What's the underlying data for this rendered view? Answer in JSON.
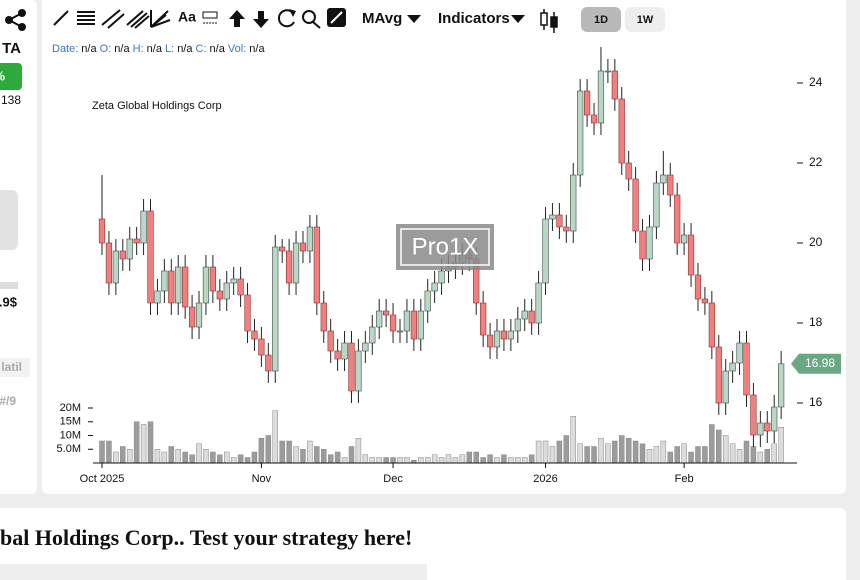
{
  "left_panel": {
    "ticker": "TA",
    "change": "%",
    "price": "138",
    "value": ".9$",
    "tab": "latil",
    "rank": "#/9"
  },
  "toolbar": {
    "text_tool": "Aa",
    "moving_average": "MAvg",
    "indicators": "Indicators",
    "intervals": [
      "1D",
      "1W"
    ]
  },
  "info": [
    {
      "label": "Date:",
      "value": "n/a"
    },
    {
      "label": "O:",
      "value": "n/a"
    },
    {
      "label": "H:",
      "value": "n/a"
    },
    {
      "label": "L:",
      "value": "n/a"
    },
    {
      "label": "C:",
      "value": "n/a"
    },
    {
      "label": "Vol:",
      "value": "n/a"
    }
  ],
  "chart_data": {
    "type": "candlestick",
    "title": "Zeta Global Holdings Corp",
    "watermark": "Pro1X",
    "xticks": [
      {
        "value": 0,
        "label": "Oct 2025"
      },
      {
        "value": 23,
        "label": "Nov"
      },
      {
        "value": 42,
        "label": "Dec"
      },
      {
        "value": 64,
        "label": "2026"
      },
      {
        "value": 84,
        "label": "Feb"
      }
    ],
    "open": [
      20.6,
      20.0,
      19.0,
      19.8,
      19.6,
      20.1,
      20.0,
      20.8,
      18.5,
      18.8,
      19.3,
      18.5,
      19.4,
      18.4,
      17.9,
      18.5,
      19.4,
      18.8,
      18.6,
      19.0,
      19.1,
      18.7,
      17.8,
      17.6,
      17.2,
      16.8,
      19.9,
      19.8,
      19.0,
      20.0,
      19.8,
      20.4,
      18.5,
      17.8,
      17.3,
      17.1,
      17.5,
      16.3,
      17.3,
      17.5,
      17.9,
      18.3,
      18.2,
      17.8,
      17.8,
      18.3,
      17.6,
      18.3,
      18.8,
      19.0,
      19.3,
      19.4,
      19.5,
      19.7,
      19.6,
      18.5,
      17.7,
      17.4,
      17.8,
      17.6,
      17.8,
      18.1,
      18.3,
      18.0,
      19.0,
      20.6,
      20.7,
      20.4,
      20.3,
      21.7,
      23.8,
      23.2,
      23.0,
      24.3,
      24.3,
      23.6,
      22.0,
      21.6,
      20.3,
      19.6,
      20.4,
      21.5,
      21.7,
      21.2,
      20.0,
      20.2,
      19.2,
      18.6,
      18.5,
      17.4,
      16.0,
      16.8,
      17.0,
      17.5,
      16.2,
      15.2,
      15.5,
      15.3,
      15.9
    ],
    "high": [
      21.7,
      20.3,
      20.1,
      20.1,
      20.4,
      20.4,
      21.1,
      21.1,
      19.1,
      19.6,
      19.6,
      19.7,
      19.7,
      18.7,
      18.8,
      19.7,
      19.7,
      19.1,
      19.3,
      19.4,
      19.4,
      19.0,
      18.1,
      17.9,
      17.5,
      20.2,
      20.1,
      20.1,
      20.3,
      20.3,
      20.7,
      20.7,
      18.8,
      18.1,
      17.6,
      17.8,
      17.8,
      17.6,
      17.8,
      18.2,
      18.6,
      18.6,
      18.5,
      18.1,
      18.6,
      18.6,
      18.6,
      19.1,
      19.3,
      19.6,
      19.7,
      19.8,
      20.0,
      20.0,
      19.9,
      18.8,
      18.0,
      18.1,
      18.1,
      18.1,
      18.4,
      18.6,
      18.6,
      19.3,
      20.9,
      21.0,
      21.0,
      20.7,
      22.0,
      24.1,
      24.1,
      23.5,
      24.9,
      24.6,
      24.6,
      23.9,
      22.3,
      21.9,
      20.6,
      20.7,
      21.8,
      22.3,
      22.0,
      21.5,
      20.5,
      20.5,
      19.5,
      18.9,
      18.8,
      17.7,
      17.1,
      17.3,
      17.8,
      17.8,
      16.5,
      15.8,
      15.8,
      16.2,
      17.3
    ],
    "low": [
      19.7,
      18.7,
      18.7,
      19.3,
      19.3,
      19.7,
      19.7,
      18.2,
      18.2,
      18.5,
      18.2,
      18.2,
      18.1,
      17.6,
      17.6,
      18.2,
      18.5,
      18.3,
      18.3,
      18.7,
      18.4,
      17.5,
      17.3,
      16.9,
      16.5,
      16.5,
      19.5,
      18.7,
      18.7,
      19.5,
      19.5,
      18.2,
      17.5,
      17.0,
      16.8,
      16.8,
      16.0,
      16.0,
      17.0,
      17.2,
      17.6,
      17.9,
      17.5,
      17.5,
      17.5,
      17.3,
      17.3,
      18.0,
      18.5,
      18.7,
      19.0,
      19.1,
      19.2,
      19.3,
      18.2,
      17.4,
      17.1,
      17.1,
      17.3,
      17.3,
      17.5,
      17.8,
      17.7,
      17.7,
      18.7,
      20.3,
      20.1,
      20.0,
      20.0,
      21.4,
      22.9,
      22.7,
      22.7,
      24.0,
      23.3,
      21.7,
      21.3,
      20.0,
      19.3,
      19.3,
      20.1,
      21.2,
      20.9,
      19.7,
      19.7,
      18.9,
      18.3,
      18.2,
      17.1,
      15.7,
      15.7,
      16.5,
      16.7,
      15.9,
      14.9,
      14.9,
      15.0,
      15.0,
      15.6
    ],
    "close": [
      20.0,
      19.0,
      19.8,
      19.6,
      20.1,
      20.0,
      20.8,
      18.5,
      18.8,
      19.3,
      18.5,
      19.4,
      18.4,
      17.9,
      18.5,
      19.4,
      18.8,
      18.6,
      19.0,
      19.1,
      18.7,
      17.8,
      17.6,
      17.2,
      16.8,
      19.9,
      19.8,
      19.0,
      20.0,
      19.8,
      20.4,
      18.5,
      17.8,
      17.3,
      17.1,
      17.5,
      16.3,
      17.3,
      17.5,
      17.9,
      18.3,
      18.2,
      17.8,
      17.8,
      18.3,
      17.6,
      18.3,
      18.8,
      19.0,
      19.3,
      19.4,
      19.5,
      19.7,
      19.6,
      18.5,
      17.7,
      17.4,
      17.8,
      17.6,
      17.8,
      18.1,
      18.3,
      18.0,
      19.0,
      20.6,
      20.7,
      20.4,
      20.3,
      21.7,
      23.8,
      23.2,
      23.0,
      24.3,
      24.3,
      23.6,
      22.0,
      21.6,
      20.3,
      19.6,
      20.4,
      21.5,
      21.7,
      21.2,
      20.0,
      20.2,
      19.2,
      18.6,
      18.5,
      17.4,
      16.0,
      16.8,
      17.0,
      17.5,
      16.2,
      15.2,
      15.5,
      15.3,
      15.9,
      16.98
    ],
    "volume": [
      8000000,
      8000000,
      4000000,
      6000000,
      5000000,
      15000000,
      14000000,
      15000000,
      5000000,
      4000000,
      6000000,
      5000000,
      4000000,
      3000000,
      7000000,
      5000000,
      4000000,
      3000000,
      4000000,
      2000000,
      3000000,
      2000000,
      4000000,
      9000000,
      10000000,
      19000000,
      8000000,
      8000000,
      6000000,
      5000000,
      8000000,
      6000000,
      5000000,
      3000000,
      4000000,
      2000000,
      6000000,
      9000000,
      3000000,
      2000000,
      2000000,
      2000000,
      2000000,
      2000000,
      2000000,
      1000000,
      2000000,
      2000000,
      3000000,
      2000000,
      3000000,
      2000000,
      3000000,
      4000000,
      4000000,
      2000000,
      3000000,
      2000000,
      3000000,
      2000000,
      2000000,
      2000000,
      3000000,
      8000000,
      8000000,
      6000000,
      8000000,
      10000000,
      17000000,
      7000000,
      6000000,
      6000000,
      9000000,
      7000000,
      8000000,
      10000000,
      9000000,
      8000000,
      7000000,
      5000000,
      6000000,
      8000000,
      4000000,
      6000000,
      7000000,
      4000000,
      6000000,
      6000000,
      14000000,
      12000000,
      10000000,
      7000000,
      5000000,
      8000000,
      6000000,
      4000000,
      5000000,
      7000000,
      13000000
    ],
    "ylim": [
      14.5,
      25
    ],
    "yticks": [
      16,
      18,
      20,
      22,
      24
    ],
    "y2lim": [
      0,
      20000000
    ],
    "y2ticks": [
      {
        "value": 5000000,
        "label": "5.0M"
      },
      {
        "value": 10000000,
        "label": "10M"
      },
      {
        "value": 15000000,
        "label": "15M"
      },
      {
        "value": 20000000,
        "label": "20M"
      }
    ],
    "colors": {
      "up": "#b9d6c6",
      "down": "#f08080",
      "volume_up": "#dcdcdc",
      "volume_down": "#9c9c9c",
      "last_price": "#6aa884"
    }
  },
  "promo": {
    "heading": "bal Holdings Corp.. Test your strategy here!"
  }
}
